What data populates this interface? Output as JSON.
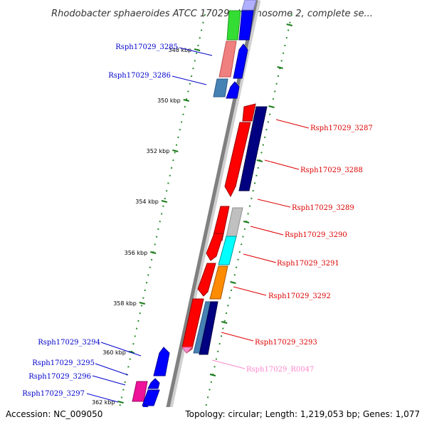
{
  "title": "Rhodobacter sphaeroides ATCC 17029 chromosome 2, complete se...",
  "footer": {
    "accession": "Accession: NC_009050",
    "summary": "Topology: circular; Length: 1,219,053 bp; Genes: 1,077"
  },
  "ticks": [
    "348 kbp",
    "350 kbp",
    "352 kbp",
    "354 kbp",
    "356 kbp",
    "358 kbp",
    "360 kbp",
    "362 kbp"
  ],
  "colors": {
    "backbone": "#808080",
    "tick": "#1a7a1a",
    "forward_label": "#0000cc",
    "reverse_label": "#dd0000",
    "rna_label": "#ff88cc"
  },
  "genes_forward_labels": [
    "Rsph17029_3285",
    "Rsph17029_3286",
    "Rsph17029_3294",
    "Rsph17029_3295",
    "Rsph17029_3296",
    "Rsph17029_3297"
  ],
  "genes_reverse_labels": [
    "Rsph17029_3287",
    "Rsph17029_3288",
    "Rsph17029_3289",
    "Rsph17029_3290",
    "Rsph17029_3291",
    "Rsph17029_3292",
    "Rsph17029_3293",
    "Rsph17029_R0047"
  ]
}
